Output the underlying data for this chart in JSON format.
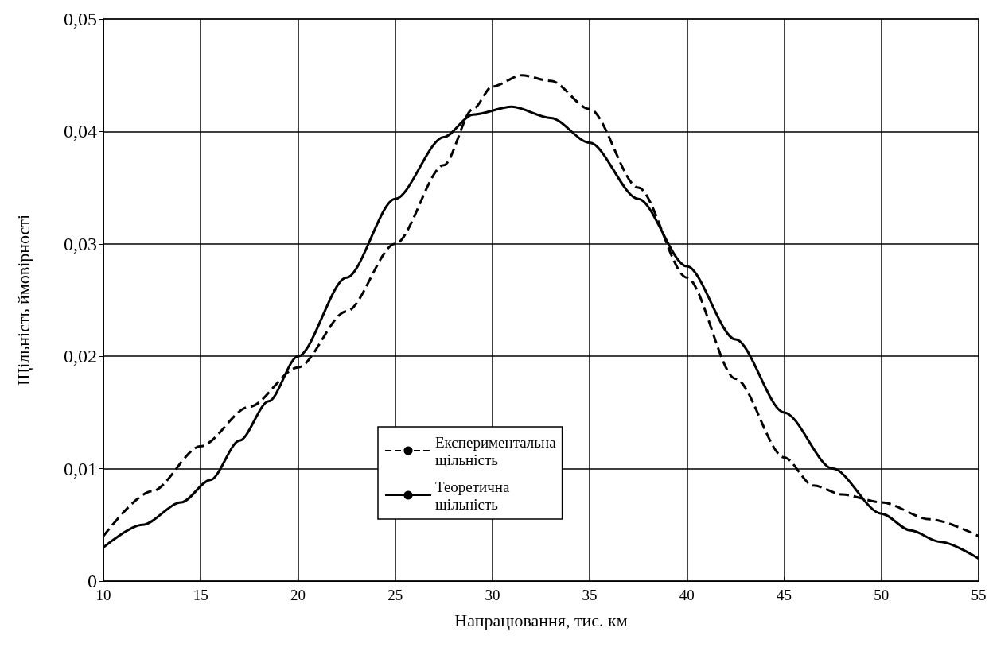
{
  "chart_data": {
    "type": "line",
    "xlabel": "Напрацювання, тис. км",
    "ylabel": "Щільність ймовірності",
    "series": [
      {
        "name": "Експериментальна щільність",
        "color": "#000000",
        "line_style": "dashed",
        "x": [
          10,
          12.5,
          15,
          17.5,
          20,
          22.5,
          25,
          27.5,
          29,
          30,
          31.5,
          33,
          35,
          37.5,
          40,
          42.5,
          45,
          46.5,
          48,
          50,
          52.5,
          55
        ],
        "values": [
          0.004,
          0.008,
          0.012,
          0.0155,
          0.019,
          0.024,
          0.03,
          0.037,
          0.042,
          0.044,
          0.045,
          0.0445,
          0.042,
          0.035,
          0.027,
          0.018,
          0.011,
          0.0085,
          0.0077,
          0.007,
          0.0055,
          0.004
        ]
      },
      {
        "name": "Теоретична щільність",
        "color": "#000000",
        "line_style": "solid",
        "x": [
          10,
          12,
          14,
          15.5,
          17,
          18.5,
          20,
          22.5,
          25,
          27.5,
          29,
          31,
          33,
          35,
          37.5,
          40,
          42.5,
          45,
          47.5,
          50,
          51.5,
          53,
          55
        ],
        "values": [
          0.003,
          0.005,
          0.007,
          0.009,
          0.0125,
          0.016,
          0.02,
          0.027,
          0.034,
          0.0395,
          0.0415,
          0.0422,
          0.0412,
          0.039,
          0.034,
          0.028,
          0.0215,
          0.015,
          0.01,
          0.006,
          0.0045,
          0.0035,
          0.002
        ]
      }
    ],
    "xlim": [
      10,
      55
    ],
    "xticks": [
      10,
      15,
      20,
      25,
      30,
      35,
      40,
      45,
      50,
      55
    ],
    "ylim": [
      0,
      0.05
    ],
    "yticks": [
      {
        "value": 0,
        "label": "0"
      },
      {
        "value": 0.01,
        "label": "0,01"
      },
      {
        "value": 0.02,
        "label": "0,02"
      },
      {
        "value": 0.03,
        "label": "0,03"
      },
      {
        "value": 0.04,
        "label": "0,04"
      },
      {
        "value": 0.05,
        "label": "0,05"
      }
    ],
    "grid": true,
    "legend": "bottom",
    "marker": "none"
  }
}
